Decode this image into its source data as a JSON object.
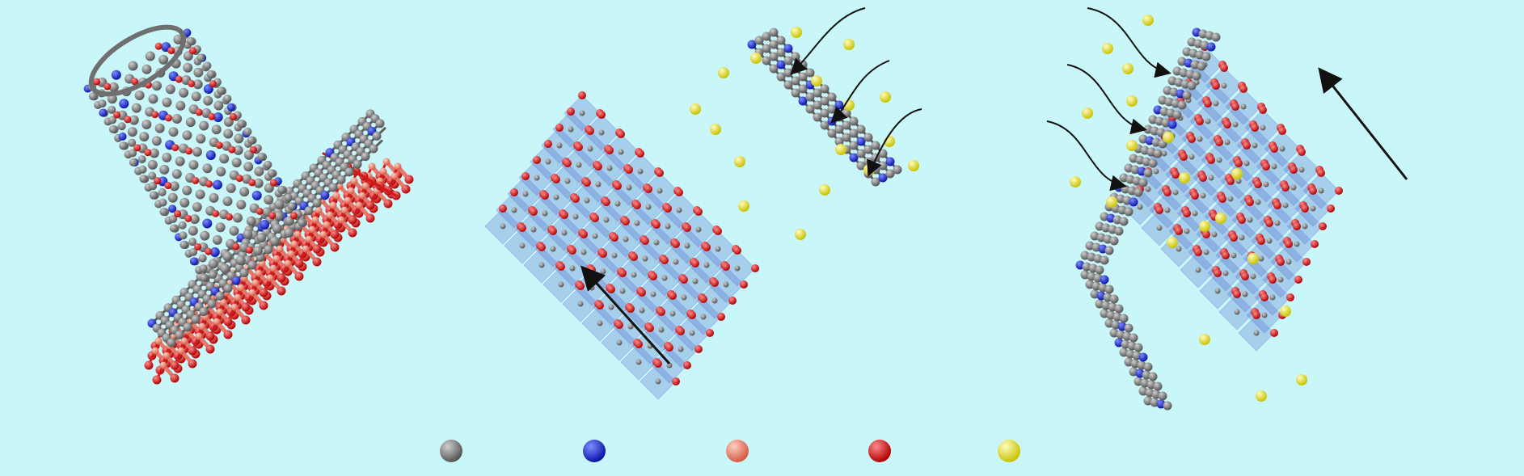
{
  "figure": {
    "background": "#c9f7f9",
    "colors": {
      "carbon": "#6f6f6f",
      "nitrogen": "#1f2fd8",
      "salmon_atom": "#f0806c",
      "oxygen": "#e00d0d",
      "lithium": "#f2ee12",
      "polyhedron": "#4a67c8",
      "arrow": "#111111"
    },
    "panels": [
      {
        "name": "nanotube-on-slab",
        "description_icon": "carbon-nanotube-icon"
      },
      {
        "name": "intercalation-lattice-1",
        "description_icon": "lattice-icon"
      },
      {
        "name": "intercalation-lattice-2",
        "description_icon": "lattice-icon"
      }
    ],
    "legend": {
      "items": [
        {
          "icon": "gray-sphere-icon",
          "color": "#6f6f6f",
          "label": ""
        },
        {
          "icon": "blue-sphere-icon",
          "color": "#1f2fd8",
          "label": ""
        },
        {
          "icon": "salmon-sphere-icon",
          "color": "#f0806c",
          "label": ""
        },
        {
          "icon": "red-sphere-icon",
          "color": "#e00d0d",
          "label": ""
        },
        {
          "icon": "yellow-sphere-icon",
          "color": "#f2ee12",
          "label": ""
        }
      ]
    }
  }
}
